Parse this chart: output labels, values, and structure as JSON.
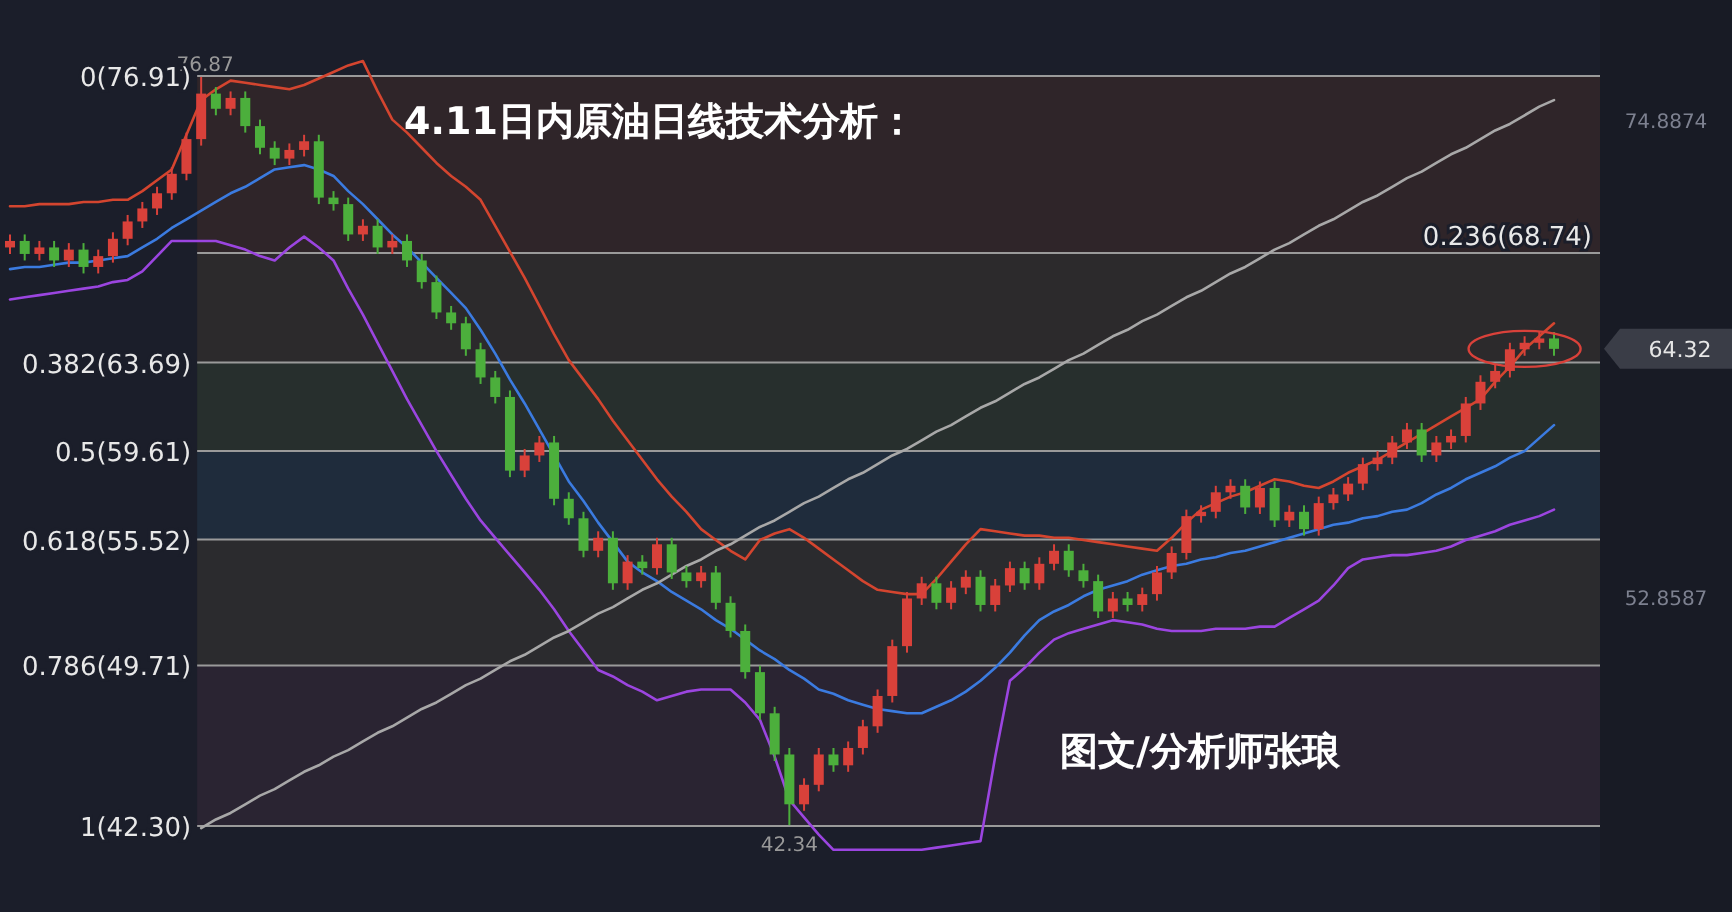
{
  "chart_data": {
    "type": "candlestick",
    "title": "4.11日内原油日线技术分析：",
    "categories": [
      null,
      null,
      null,
      null,
      null,
      null,
      null,
      null,
      null,
      null,
      null,
      null,
      null,
      null,
      null,
      null,
      null,
      null,
      null,
      null,
      null,
      null,
      null,
      null,
      null,
      null,
      null,
      null,
      null,
      null,
      null,
      null,
      null,
      null,
      null,
      null,
      null,
      null,
      null,
      null,
      null,
      null,
      null,
      null,
      null,
      null,
      null,
      null,
      null,
      null,
      null,
      null,
      null,
      null,
      null,
      null,
      null,
      null,
      null,
      null,
      null,
      null,
      null,
      null,
      null,
      null,
      null,
      null,
      null,
      null,
      null,
      null,
      null,
      null,
      null,
      null,
      null,
      null,
      null,
      null,
      null,
      null,
      null,
      null,
      null,
      null,
      null,
      null,
      null,
      null,
      null,
      null,
      null,
      null,
      null,
      null,
      null,
      null,
      null,
      null,
      null,
      null,
      null,
      null,
      null,
      null
    ],
    "ohlc": [
      [
        69.0,
        69.6,
        68.7,
        69.3
      ],
      [
        69.3,
        69.6,
        68.4,
        68.7
      ],
      [
        68.7,
        69.3,
        68.4,
        69.0
      ],
      [
        69.0,
        69.3,
        68.1,
        68.4
      ],
      [
        68.4,
        69.2,
        68.1,
        68.9
      ],
      [
        68.9,
        69.2,
        67.8,
        68.1
      ],
      [
        68.1,
        68.9,
        67.8,
        68.6
      ],
      [
        68.6,
        69.7,
        68.3,
        69.4
      ],
      [
        69.4,
        70.5,
        69.1,
        70.2
      ],
      [
        70.2,
        71.1,
        69.9,
        70.8
      ],
      [
        70.8,
        71.8,
        70.5,
        71.5
      ],
      [
        71.5,
        72.7,
        71.2,
        72.4
      ],
      [
        72.4,
        74.3,
        72.1,
        74.0
      ],
      [
        74.0,
        76.87,
        73.7,
        76.1
      ],
      [
        76.1,
        76.4,
        75.1,
        75.4
      ],
      [
        75.4,
        76.2,
        75.1,
        75.9
      ],
      [
        75.9,
        76.2,
        74.3,
        74.6
      ],
      [
        74.6,
        74.9,
        73.3,
        73.6
      ],
      [
        73.6,
        73.9,
        72.8,
        73.1
      ],
      [
        73.1,
        73.8,
        72.8,
        73.5
      ],
      [
        73.5,
        74.2,
        73.2,
        73.9
      ],
      [
        73.9,
        74.2,
        71.0,
        71.3
      ],
      [
        71.3,
        71.6,
        70.7,
        71.0
      ],
      [
        71.0,
        71.3,
        69.3,
        69.6
      ],
      [
        69.6,
        70.3,
        69.3,
        70.0
      ],
      [
        70.0,
        70.3,
        68.7,
        69.0
      ],
      [
        69.0,
        69.6,
        68.7,
        69.3
      ],
      [
        69.3,
        69.6,
        68.1,
        68.4
      ],
      [
        68.4,
        68.7,
        67.1,
        67.4
      ],
      [
        67.4,
        67.7,
        65.7,
        66.0
      ],
      [
        66.0,
        66.3,
        65.2,
        65.5
      ],
      [
        65.5,
        65.8,
        64.0,
        64.3
      ],
      [
        64.3,
        64.6,
        62.7,
        63.0
      ],
      [
        63.0,
        63.3,
        61.8,
        62.1
      ],
      [
        62.1,
        62.4,
        58.4,
        58.7
      ],
      [
        58.7,
        59.7,
        58.4,
        59.4
      ],
      [
        59.4,
        60.3,
        59.1,
        60.0
      ],
      [
        60.0,
        60.3,
        57.1,
        57.4
      ],
      [
        57.4,
        57.7,
        56.2,
        56.5
      ],
      [
        56.5,
        56.8,
        54.7,
        55.0
      ],
      [
        55.0,
        55.9,
        54.7,
        55.6
      ],
      [
        55.6,
        55.9,
        53.2,
        53.5
      ],
      [
        53.5,
        54.8,
        53.2,
        54.5
      ],
      [
        54.5,
        54.8,
        53.9,
        54.2
      ],
      [
        54.2,
        55.6,
        53.9,
        55.3
      ],
      [
        55.3,
        55.6,
        53.7,
        54.0
      ],
      [
        54.0,
        54.3,
        53.3,
        53.6
      ],
      [
        53.6,
        54.3,
        53.3,
        54.0
      ],
      [
        54.0,
        54.3,
        52.3,
        52.6
      ],
      [
        52.6,
        52.9,
        51.0,
        51.3
      ],
      [
        51.3,
        51.6,
        49.1,
        49.4
      ],
      [
        49.4,
        49.7,
        47.2,
        47.5
      ],
      [
        47.5,
        47.8,
        45.3,
        45.6
      ],
      [
        45.6,
        45.9,
        42.34,
        43.3
      ],
      [
        43.3,
        44.5,
        43.0,
        44.2
      ],
      [
        44.2,
        45.9,
        43.9,
        45.6
      ],
      [
        45.6,
        45.9,
        44.8,
        45.1
      ],
      [
        45.1,
        46.2,
        44.8,
        45.9
      ],
      [
        45.9,
        47.2,
        45.6,
        46.9
      ],
      [
        46.9,
        48.6,
        46.6,
        48.3
      ],
      [
        48.3,
        50.9,
        48.0,
        50.6
      ],
      [
        50.6,
        53.1,
        50.3,
        52.8
      ],
      [
        52.8,
        53.8,
        52.5,
        53.5
      ],
      [
        53.5,
        53.8,
        52.3,
        52.6
      ],
      [
        52.6,
        53.6,
        52.3,
        53.3
      ],
      [
        53.3,
        54.1,
        53.0,
        53.8
      ],
      [
        53.8,
        54.1,
        52.2,
        52.5
      ],
      [
        52.5,
        53.7,
        52.2,
        53.4
      ],
      [
        53.4,
        54.5,
        53.1,
        54.2
      ],
      [
        54.2,
        54.5,
        53.2,
        53.5
      ],
      [
        53.5,
        54.7,
        53.2,
        54.4
      ],
      [
        54.4,
        55.3,
        54.1,
        55.0
      ],
      [
        55.0,
        55.3,
        53.8,
        54.1
      ],
      [
        54.1,
        54.4,
        53.3,
        53.6
      ],
      [
        53.6,
        53.9,
        51.9,
        52.2
      ],
      [
        52.2,
        53.1,
        51.9,
        52.8
      ],
      [
        52.8,
        53.1,
        52.2,
        52.5
      ],
      [
        52.5,
        53.3,
        52.2,
        53.0
      ],
      [
        53.0,
        54.3,
        52.7,
        54.0
      ],
      [
        54.0,
        55.2,
        53.7,
        54.9
      ],
      [
        54.9,
        56.9,
        54.6,
        56.6
      ],
      [
        56.6,
        57.1,
        56.3,
        56.8
      ],
      [
        56.8,
        58.0,
        56.5,
        57.7
      ],
      [
        57.7,
        58.3,
        57.4,
        58.0
      ],
      [
        58.0,
        58.3,
        56.7,
        57.0
      ],
      [
        57.0,
        58.2,
        56.7,
        57.9
      ],
      [
        57.9,
        58.2,
        56.1,
        56.4
      ],
      [
        56.4,
        57.1,
        56.1,
        56.8
      ],
      [
        56.8,
        57.1,
        55.7,
        56.0
      ],
      [
        56.0,
        57.5,
        55.7,
        57.2
      ],
      [
        57.2,
        57.9,
        56.9,
        57.6
      ],
      [
        57.6,
        58.4,
        57.3,
        58.1
      ],
      [
        58.1,
        59.3,
        57.8,
        59.0
      ],
      [
        59.0,
        59.6,
        58.7,
        59.3
      ],
      [
        59.3,
        60.3,
        59.0,
        60.0
      ],
      [
        60.0,
        60.9,
        59.7,
        60.6
      ],
      [
        60.6,
        60.9,
        59.1,
        59.4
      ],
      [
        59.4,
        60.3,
        59.1,
        60.0
      ],
      [
        60.0,
        60.6,
        59.7,
        60.3
      ],
      [
        60.3,
        62.1,
        60.0,
        61.8
      ],
      [
        61.8,
        63.1,
        61.5,
        62.8
      ],
      [
        62.8,
        63.6,
        62.5,
        63.3
      ],
      [
        63.3,
        64.6,
        63.0,
        64.3
      ],
      [
        64.3,
        64.9,
        64.0,
        64.6
      ],
      [
        64.6,
        65.1,
        64.3,
        64.8
      ],
      [
        64.8,
        65.1,
        64.0,
        64.32
      ]
    ],
    "series": [
      {
        "type": "line",
        "color": "#d4452f",
        "values": [
          70.9,
          70.9,
          71.0,
          71.0,
          71.0,
          71.1,
          71.1,
          71.2,
          71.2,
          71.6,
          72.1,
          72.6,
          74.2,
          75.8,
          76.3,
          76.7,
          76.6,
          76.5,
          76.4,
          76.3,
          76.5,
          76.8,
          77.1,
          77.4,
          77.6,
          76.2,
          74.9,
          74.3,
          73.6,
          72.9,
          72.3,
          71.8,
          71.2,
          70.0,
          68.8,
          67.6,
          66.3,
          65.0,
          63.8,
          62.9,
          62.0,
          61.0,
          60.1,
          59.2,
          58.3,
          57.5,
          56.8,
          56.0,
          55.5,
          55.0,
          54.6,
          55.5,
          55.8,
          56.0,
          55.6,
          55.1,
          54.6,
          54.1,
          53.6,
          53.2,
          53.1,
          53.0,
          53.0,
          53.7,
          54.5,
          55.3,
          56.0,
          55.9,
          55.8,
          55.7,
          55.7,
          55.6,
          55.6,
          55.5,
          55.4,
          55.3,
          55.2,
          55.1,
          55.0,
          55.6,
          56.3,
          56.9,
          57.2,
          57.5,
          57.7,
          58.0,
          58.3,
          58.2,
          58.0,
          57.9,
          58.2,
          58.6,
          58.9,
          59.2,
          59.6,
          60.0,
          60.4,
          60.8,
          61.2,
          61.6,
          62.0,
          62.8,
          63.5,
          64.3,
          64.9,
          65.5
        ]
      },
      {
        "type": "line",
        "color": "#3b7be0",
        "values": [
          68.0,
          68.1,
          68.1,
          68.2,
          68.3,
          68.3,
          68.4,
          68.5,
          68.6,
          69.0,
          69.4,
          69.9,
          70.3,
          70.7,
          71.1,
          71.5,
          71.8,
          72.2,
          72.6,
          72.7,
          72.8,
          72.6,
          72.3,
          71.6,
          71.0,
          70.3,
          69.6,
          69.0,
          68.3,
          67.6,
          66.9,
          66.2,
          65.2,
          64.1,
          62.9,
          61.8,
          60.6,
          59.4,
          58.2,
          57.3,
          56.3,
          55.4,
          54.5,
          54.0,
          53.6,
          53.1,
          52.7,
          52.3,
          51.8,
          51.4,
          50.9,
          50.4,
          50.0,
          49.5,
          49.1,
          48.6,
          48.4,
          48.1,
          47.9,
          47.7,
          47.6,
          47.5,
          47.5,
          47.8,
          48.1,
          48.5,
          49.0,
          49.6,
          50.3,
          51.1,
          51.8,
          52.2,
          52.5,
          52.9,
          53.2,
          53.4,
          53.6,
          53.9,
          54.1,
          54.3,
          54.4,
          54.6,
          54.7,
          54.9,
          55.0,
          55.2,
          55.4,
          55.6,
          55.8,
          56.0,
          56.2,
          56.3,
          56.5,
          56.6,
          56.8,
          56.9,
          57.2,
          57.6,
          57.9,
          58.3,
          58.6,
          58.9,
          59.3,
          59.6,
          60.2,
          60.8
        ]
      },
      {
        "type": "line",
        "color": "#9b45e0",
        "values": [
          66.6,
          66.7,
          66.8,
          66.9,
          67.0,
          67.1,
          67.2,
          67.4,
          67.5,
          67.9,
          68.6,
          69.3,
          69.3,
          69.3,
          69.3,
          69.1,
          68.9,
          68.6,
          68.4,
          69.0,
          69.5,
          69.0,
          68.4,
          67.1,
          65.9,
          64.6,
          63.3,
          62.0,
          60.8,
          59.6,
          58.5,
          57.4,
          56.4,
          55.6,
          54.8,
          54.0,
          53.2,
          52.3,
          51.3,
          50.4,
          49.5,
          49.2,
          48.8,
          48.5,
          48.1,
          48.3,
          48.5,
          48.6,
          48.6,
          48.6,
          48.0,
          47.2,
          45.5,
          43.5,
          42.7,
          41.9,
          41.2,
          41.2,
          41.2,
          41.2,
          41.2,
          41.2,
          41.2,
          41.3,
          41.4,
          41.5,
          41.6,
          45.5,
          49.0,
          49.6,
          50.3,
          50.9,
          51.2,
          51.4,
          51.6,
          51.8,
          51.7,
          51.6,
          51.4,
          51.3,
          51.3,
          51.3,
          51.4,
          51.4,
          51.4,
          51.5,
          51.5,
          51.9,
          52.3,
          52.7,
          53.4,
          54.2,
          54.6,
          54.7,
          54.8,
          54.8,
          54.9,
          55.0,
          55.2,
          55.5,
          55.7,
          55.9,
          56.2,
          56.4,
          56.6,
          56.9
        ]
      },
      {
        "type": "line",
        "color": "#a8a8a8",
        "values": [
          null,
          null,
          null,
          null,
          null,
          null,
          null,
          null,
          null,
          null,
          null,
          null,
          null,
          42.2,
          42.6,
          42.9,
          43.3,
          43.7,
          44.0,
          44.4,
          44.8,
          45.1,
          45.5,
          45.8,
          46.2,
          46.6,
          46.9,
          47.3,
          47.7,
          48.0,
          48.4,
          48.8,
          49.1,
          49.5,
          49.9,
          50.2,
          50.6,
          51.0,
          51.3,
          51.7,
          52.1,
          52.4,
          52.8,
          53.2,
          53.5,
          53.9,
          54.3,
          54.6,
          55.0,
          55.3,
          55.7,
          56.1,
          56.4,
          56.8,
          57.2,
          57.5,
          57.9,
          58.3,
          58.6,
          59.0,
          59.4,
          59.7,
          60.1,
          60.5,
          60.8,
          61.2,
          61.6,
          61.9,
          62.3,
          62.7,
          63.0,
          63.4,
          63.8,
          64.1,
          64.5,
          64.9,
          65.2,
          65.6,
          65.9,
          66.3,
          66.7,
          67.0,
          67.4,
          67.8,
          68.1,
          68.5,
          68.9,
          69.2,
          69.6,
          70.0,
          70.3,
          70.7,
          71.1,
          71.4,
          71.8,
          72.2,
          72.5,
          72.9,
          73.3,
          73.6,
          74.0,
          74.4,
          74.7,
          75.1,
          75.5,
          75.8
        ]
      }
    ],
    "ylim": [
      38.33,
      80.42
    ],
    "yticks": [
      74.8874,
      52.8587
    ],
    "tick_labels": "y",
    "ref_lines": [
      {
        "axis": "y",
        "value": 76.91,
        "label": "0(76.91)",
        "color": "#9a9a9a"
      },
      {
        "axis": "y",
        "value": 68.74,
        "label": "0.236(68.74)",
        "color": "#9a9a9a"
      },
      {
        "axis": "y",
        "value": 63.69,
        "label": "0.382(63.69)",
        "color": "#9a9a9a"
      },
      {
        "axis": "y",
        "value": 59.61,
        "label": "0.5(59.61)",
        "color": "#9a9a9a"
      },
      {
        "axis": "y",
        "value": 55.52,
        "label": "0.618(55.52)",
        "color": "#9a9a9a"
      },
      {
        "axis": "y",
        "value": 49.71,
        "label": "0.786(49.71)",
        "color": "#9a9a9a"
      },
      {
        "axis": "y",
        "value": 42.3,
        "label": "1(42.30)",
        "color": "#9a9a9a"
      }
    ],
    "bands": [
      {
        "axis": "y",
        "from": 68.74,
        "to": 76.91,
        "color": "#2f2529"
      },
      {
        "axis": "y",
        "from": 63.69,
        "to": 68.74,
        "color": "#2c2a2c"
      },
      {
        "axis": "y",
        "from": 59.61,
        "to": 63.69,
        "color": "#272f2d"
      },
      {
        "axis": "y",
        "from": 55.52,
        "to": 59.61,
        "color": "#1f2c3c"
      },
      {
        "axis": "y",
        "from": 49.71,
        "to": 55.52,
        "color": "#2b2b2e"
      },
      {
        "axis": "y",
        "from": 42.3,
        "to": 49.71,
        "color": "#2a2432"
      }
    ],
    "annotations": [
      {
        "text": "76.87",
        "y": 76.87
      },
      {
        "text": "42.34",
        "y": 42.34
      },
      "图文/分析师张琅",
      "64.32"
    ],
    "grid": false
  }
}
